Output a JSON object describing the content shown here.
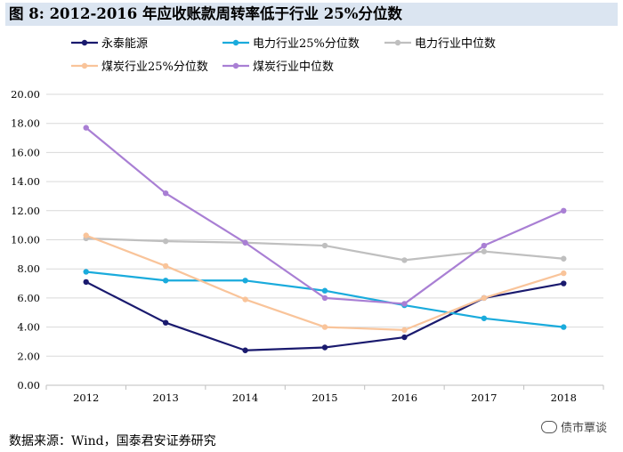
{
  "figure": {
    "label": "图  8:",
    "title": "2012-2016 年应收账款周转率低于行业 25%分位数"
  },
  "chart_data": {
    "type": "line",
    "categories": [
      "2012",
      "2013",
      "2014",
      "2015",
      "2016",
      "2017",
      "2018"
    ],
    "ylim": [
      0,
      20
    ],
    "yticks": [
      "0.00",
      "2.00",
      "4.00",
      "6.00",
      "8.00",
      "10.00",
      "12.00",
      "14.00",
      "16.00",
      "18.00",
      "20.00"
    ],
    "grid": true,
    "legend": "top",
    "series": [
      {
        "name": "永泰能源",
        "color": "#1a1a6e",
        "values": [
          7.1,
          4.3,
          2.4,
          2.6,
          3.3,
          6.0,
          7.0
        ]
      },
      {
        "name": "电力行业25%分位数",
        "color": "#1aabdc",
        "values": [
          7.8,
          7.2,
          7.2,
          6.5,
          5.5,
          4.6,
          4.0
        ]
      },
      {
        "name": "电力行业中位数",
        "color": "#bfbfbf",
        "values": [
          10.1,
          9.9,
          9.8,
          9.6,
          8.6,
          9.2,
          8.7
        ]
      },
      {
        "name": "煤炭行业25%分位数",
        "color": "#f9c49a",
        "values": [
          10.3,
          8.2,
          5.9,
          4.0,
          3.8,
          6.0,
          7.7
        ]
      },
      {
        "name": "煤炭行业中位数",
        "color": "#a97fd4",
        "values": [
          17.7,
          13.2,
          9.8,
          6.0,
          5.6,
          9.6,
          12.0
        ]
      }
    ]
  },
  "source": "数据来源：Wind，国泰君安证券研究",
  "watermark": "债市覃谈"
}
